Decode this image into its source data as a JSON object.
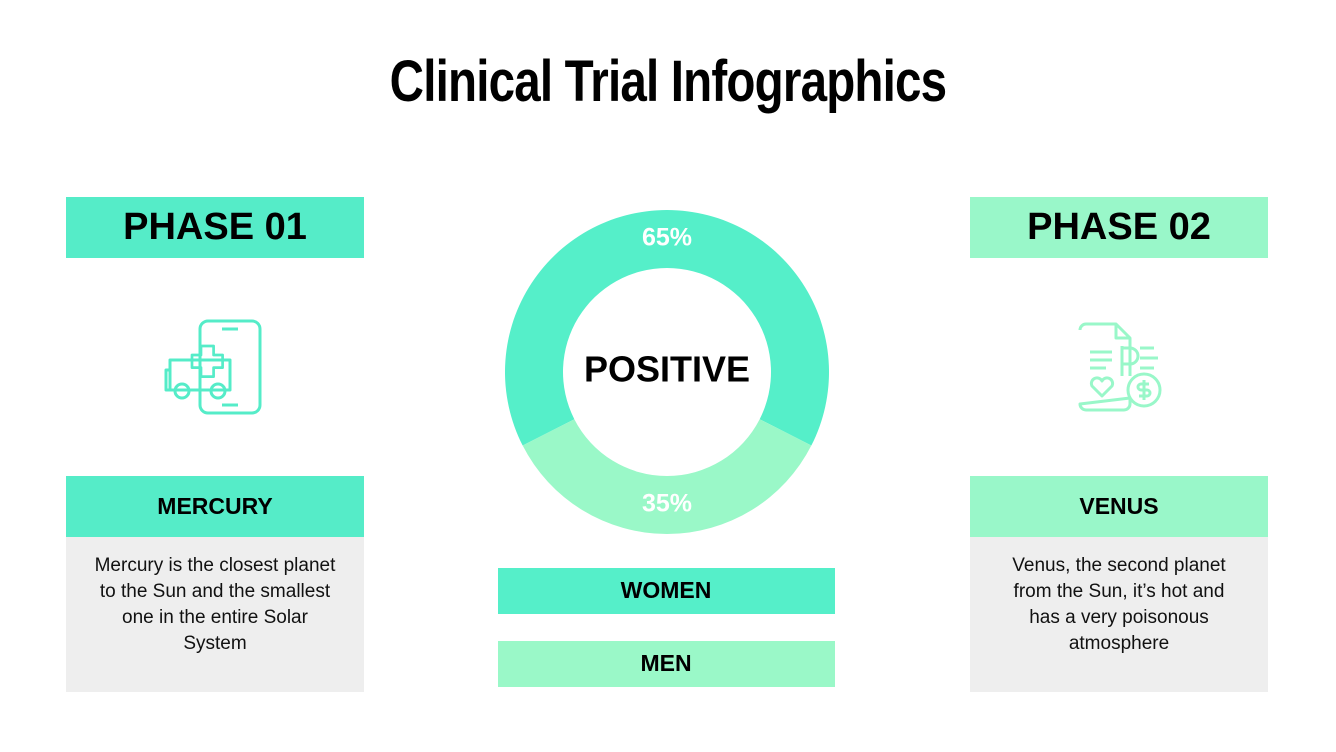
{
  "title": "Clinical Trial Infographics",
  "panels": [
    {
      "heading": "PHASE 01",
      "title": "MERCURY",
      "text": "Mercury is the closest planet to the Sun and the smallest one in the entire Solar System"
    },
    {
      "heading": "PHASE 02",
      "title": "VENUS",
      "text": "Venus, the second planet from the Sun, it’s hot and has a very poisonous atmosphere"
    }
  ],
  "chart_data": {
    "type": "pie",
    "donut": true,
    "center_label": "POSITIVE",
    "categories": [
      "WOMEN",
      "MEN"
    ],
    "values": [
      65,
      35
    ],
    "value_labels": [
      "65%",
      "35%"
    ],
    "colors": [
      "#55efc9",
      "#9af8c8"
    ]
  }
}
